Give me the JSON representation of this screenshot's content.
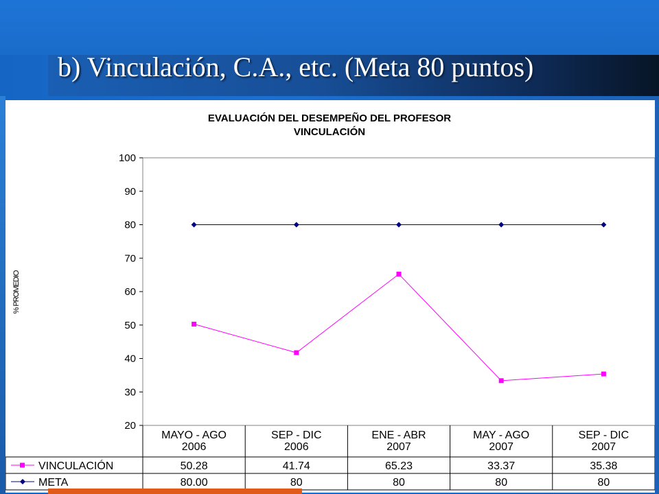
{
  "slide": {
    "title": "b) Vinculación, C.A., etc. (Meta 80 puntos)"
  },
  "colors": {
    "vinculacion": "#ff00ff",
    "meta": "#000080",
    "title_text": "#ffffff",
    "background": "#1a6cc9"
  },
  "chart_data": {
    "type": "line",
    "title": "EVALUACIÓN DEL DESEMPEÑO DEL PROFESOR",
    "subtitle": "VINCULACIÓN",
    "ylabel": "% PROMEDIO",
    "xlabel": "",
    "ylim": [
      20,
      100
    ],
    "yticks": [
      20,
      30,
      40,
      50,
      60,
      70,
      80,
      90,
      100
    ],
    "categories": [
      [
        "MAYO - AGO",
        "2006"
      ],
      [
        "SEP - DIC",
        "2006"
      ],
      [
        "ENE - ABR",
        "2007"
      ],
      [
        "MAY - AGO",
        "2007"
      ],
      [
        "SEP - DIC",
        "2007"
      ]
    ],
    "series": [
      {
        "name": "VINCULACIÓN",
        "marker": "square",
        "color": "#ff00ff",
        "values": [
          50.28,
          41.74,
          65.23,
          33.37,
          35.38
        ],
        "labels": [
          "50.28",
          "41.74",
          "65.23",
          "33.37",
          "35.38"
        ]
      },
      {
        "name": "META",
        "marker": "diamond",
        "color": "#000080",
        "values": [
          80,
          80,
          80,
          80,
          80
        ],
        "labels": [
          "80.00",
          "80",
          "80",
          "80",
          "80"
        ]
      }
    ],
    "grid": false,
    "legend": "data-table"
  }
}
